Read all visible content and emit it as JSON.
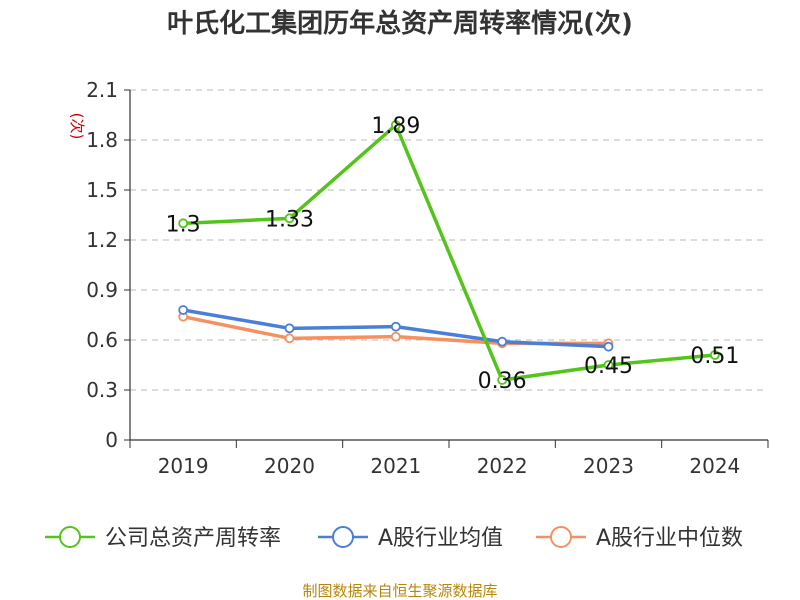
{
  "chart_data": {
    "type": "line",
    "title": "叶氏化工集团历年总资产周转率情况(次)",
    "ylabel": "(次)",
    "xlabel": "",
    "categories": [
      "2019",
      "2020",
      "2021",
      "2022",
      "2023",
      "2024"
    ],
    "ylim": [
      0,
      2.1
    ],
    "yticks": [
      "0",
      "0.3",
      "0.6",
      "0.9",
      "1.2",
      "1.5",
      "1.8",
      "2.1"
    ],
    "grid": true,
    "legend_position": "bottom",
    "series": [
      {
        "name": "公司总资产周转率",
        "color": "#52c41a",
        "values": [
          1.3,
          1.33,
          1.89,
          0.36,
          0.45,
          0.51
        ],
        "labels": [
          "1.3",
          "1.33",
          "1.89",
          "0.36",
          "0.45",
          "0.51"
        ]
      },
      {
        "name": "A股行业均值",
        "color": "#4a7fd8",
        "values": [
          0.78,
          0.67,
          0.68,
          0.59,
          0.56,
          null
        ]
      },
      {
        "name": "A股行业中位数",
        "color": "#f59061",
        "values": [
          0.74,
          0.61,
          0.62,
          0.58,
          0.58,
          null
        ]
      }
    ],
    "source": "制图数据来自恒生聚源数据库"
  }
}
